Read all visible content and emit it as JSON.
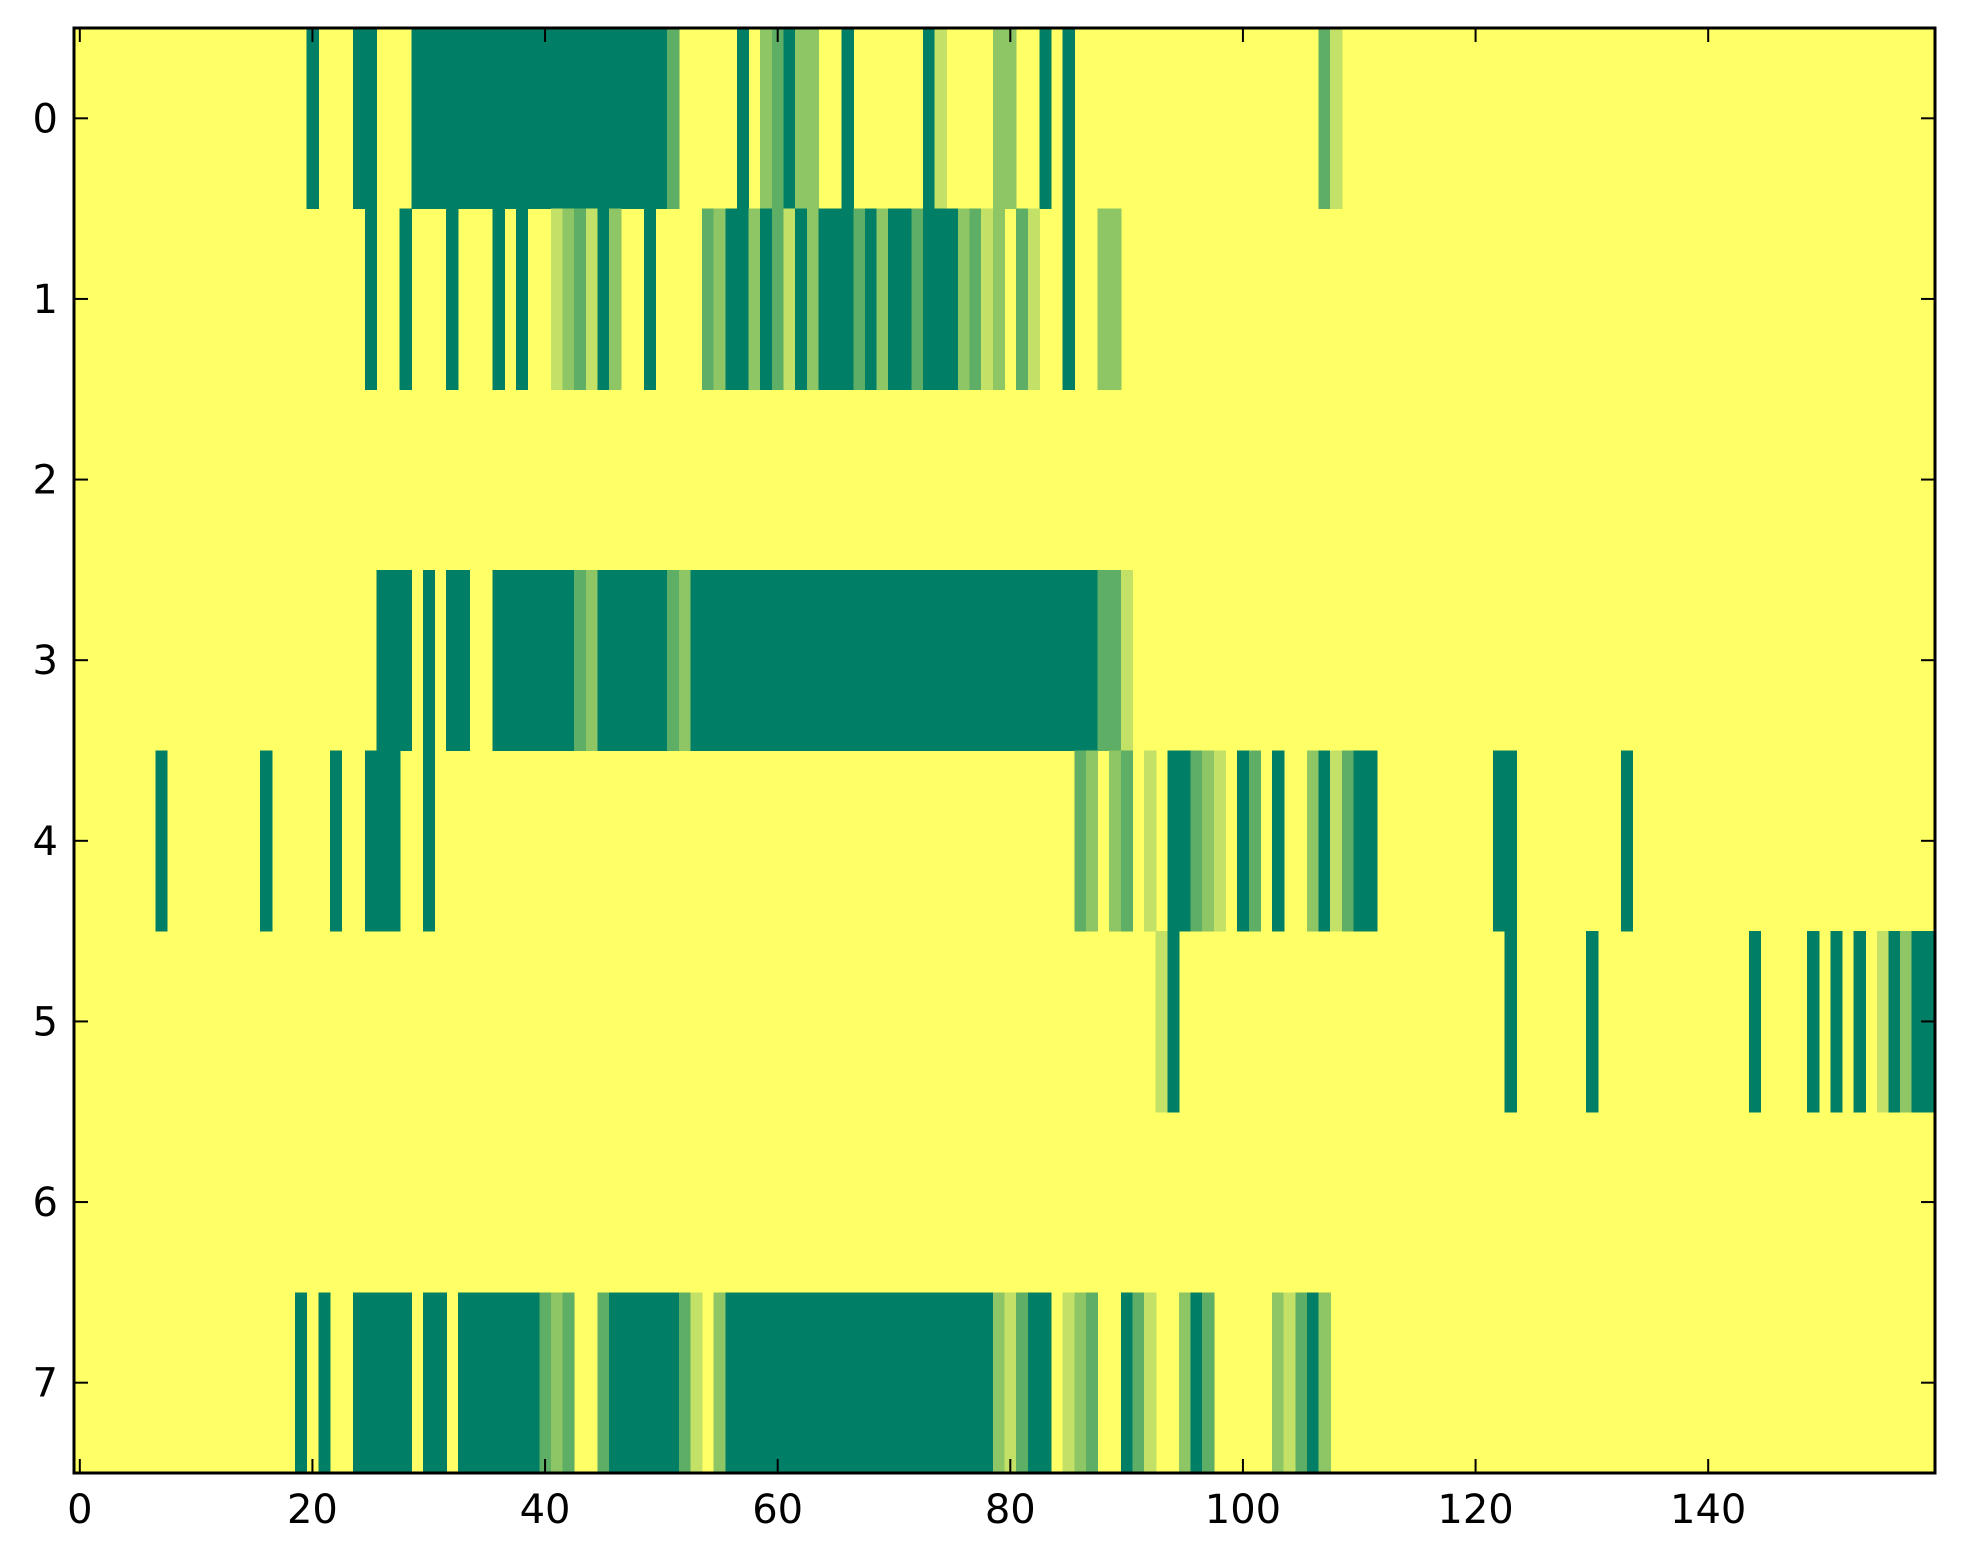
{
  "chart_data": {
    "type": "heatmap",
    "title": "",
    "xlabel": "",
    "ylabel": "",
    "xlim": [
      -0.5,
      159.5
    ],
    "ylim": [
      7.5,
      -0.5
    ],
    "x_ticks": [
      0,
      20,
      40,
      60,
      80,
      100,
      120,
      140
    ],
    "x_tick_labels": [
      "0",
      "20",
      "40",
      "60",
      "80",
      "100",
      "120",
      "140"
    ],
    "y_ticks": [
      0,
      1,
      2,
      3,
      4,
      5,
      6,
      7
    ],
    "y_tick_labels": [
      "0",
      "1",
      "2",
      "3",
      "4",
      "5",
      "6",
      "7"
    ],
    "colormap": "summer_r",
    "background_value": 0,
    "colors": {
      "0": "#ffff66",
      "1": "#c3e166",
      "2": "#8ec666",
      "3": "#5eae66",
      "4": "#007f66"
    },
    "rows": [
      {
        "row": 0,
        "segments": [
          [
            19.5,
            20.5,
            4
          ],
          [
            23.5,
            25.5,
            4
          ],
          [
            28.5,
            50.5,
            4
          ],
          [
            50.5,
            51.5,
            3
          ],
          [
            56.5,
            57.5,
            4
          ],
          [
            58.5,
            59.5,
            2
          ],
          [
            59.5,
            60.5,
            3
          ],
          [
            60.5,
            61.5,
            4
          ],
          [
            61.5,
            63.5,
            2
          ],
          [
            65.5,
            66.5,
            4
          ],
          [
            72.5,
            73.5,
            4
          ],
          [
            73.5,
            74.5,
            1
          ],
          [
            78.5,
            80.5,
            2
          ],
          [
            82.5,
            83.5,
            4
          ],
          [
            84.5,
            85.5,
            4
          ],
          [
            106.5,
            107.5,
            3
          ],
          [
            107.5,
            108.5,
            1
          ]
        ]
      },
      {
        "row": 1,
        "segments": [
          [
            24.5,
            25.5,
            4
          ],
          [
            27.5,
            28.5,
            4
          ],
          [
            31.5,
            32.5,
            4
          ],
          [
            35.5,
            36.5,
            4
          ],
          [
            37.5,
            38.5,
            4
          ],
          [
            40.5,
            41.5,
            1
          ],
          [
            41.5,
            42.5,
            2
          ],
          [
            42.5,
            43.5,
            3
          ],
          [
            43.5,
            44.5,
            1
          ],
          [
            44.5,
            45.5,
            4
          ],
          [
            45.5,
            46.5,
            2
          ],
          [
            48.5,
            49.5,
            4
          ],
          [
            53.5,
            54.5,
            3
          ],
          [
            54.5,
            55.5,
            2
          ],
          [
            55.5,
            57.5,
            4
          ],
          [
            57.5,
            58.5,
            2
          ],
          [
            58.5,
            59.5,
            4
          ],
          [
            59.5,
            60.5,
            3
          ],
          [
            60.5,
            61.5,
            1
          ],
          [
            61.5,
            62.5,
            4
          ],
          [
            62.5,
            63.5,
            2
          ],
          [
            63.5,
            66.5,
            4
          ],
          [
            66.5,
            67.5,
            3
          ],
          [
            67.5,
            68.5,
            4
          ],
          [
            68.5,
            69.5,
            2
          ],
          [
            69.5,
            71.5,
            4
          ],
          [
            71.5,
            72.5,
            3
          ],
          [
            72.5,
            75.5,
            4
          ],
          [
            75.5,
            76.5,
            2
          ],
          [
            76.5,
            77.5,
            3
          ],
          [
            77.5,
            78.5,
            1
          ],
          [
            78.5,
            79.5,
            2
          ],
          [
            80.5,
            81.5,
            3
          ],
          [
            81.5,
            82.5,
            1
          ],
          [
            84.5,
            85.5,
            4
          ],
          [
            87.5,
            89.5,
            2
          ]
        ]
      },
      {
        "row": 2,
        "segments": []
      },
      {
        "row": 3,
        "segments": [
          [
            25.5,
            28.5,
            4
          ],
          [
            29.5,
            30.5,
            4
          ],
          [
            31.5,
            33.5,
            4
          ],
          [
            35.5,
            42.5,
            4
          ],
          [
            42.5,
            43.5,
            3
          ],
          [
            43.5,
            44.5,
            2
          ],
          [
            44.5,
            50.5,
            4
          ],
          [
            50.5,
            51.5,
            3
          ],
          [
            51.5,
            52.5,
            2
          ],
          [
            52.5,
            87.5,
            4
          ],
          [
            87.5,
            89.5,
            3
          ],
          [
            89.5,
            90.5,
            1
          ]
        ]
      },
      {
        "row": 4,
        "segments": [
          [
            6.5,
            7.5,
            4
          ],
          [
            15.5,
            16.5,
            4
          ],
          [
            21.5,
            22.5,
            4
          ],
          [
            24.5,
            27.5,
            4
          ],
          [
            29.5,
            30.5,
            4
          ],
          [
            85.5,
            86.5,
            3
          ],
          [
            86.5,
            87.5,
            2
          ],
          [
            88.5,
            89.5,
            2
          ],
          [
            89.5,
            90.5,
            3
          ],
          [
            91.5,
            92.5,
            1
          ],
          [
            93.5,
            95.5,
            4
          ],
          [
            95.5,
            96.5,
            3
          ],
          [
            96.5,
            97.5,
            2
          ],
          [
            97.5,
            98.5,
            1
          ],
          [
            99.5,
            100.5,
            4
          ],
          [
            100.5,
            101.5,
            3
          ],
          [
            102.5,
            103.5,
            4
          ],
          [
            105.5,
            106.5,
            2
          ],
          [
            106.5,
            107.5,
            4
          ],
          [
            107.5,
            108.5,
            1
          ],
          [
            108.5,
            109.5,
            3
          ],
          [
            109.5,
            111.5,
            4
          ],
          [
            121.5,
            123.5,
            4
          ],
          [
            132.5,
            133.5,
            4
          ]
        ]
      },
      {
        "row": 5,
        "segments": [
          [
            92.5,
            93.5,
            1
          ],
          [
            93.5,
            94.5,
            4
          ],
          [
            122.5,
            123.5,
            4
          ],
          [
            129.5,
            130.5,
            4
          ],
          [
            143.5,
            144.5,
            4
          ],
          [
            148.5,
            149.5,
            4
          ],
          [
            150.5,
            151.5,
            4
          ],
          [
            152.5,
            153.5,
            4
          ],
          [
            154.5,
            155.5,
            1
          ],
          [
            155.5,
            156.5,
            4
          ],
          [
            156.5,
            157.5,
            2
          ],
          [
            157.5,
            159.5,
            4
          ]
        ]
      },
      {
        "row": 6,
        "segments": []
      },
      {
        "row": 7,
        "segments": [
          [
            18.5,
            19.5,
            4
          ],
          [
            20.5,
            21.5,
            4
          ],
          [
            23.5,
            28.5,
            4
          ],
          [
            29.5,
            31.5,
            4
          ],
          [
            32.5,
            39.5,
            4
          ],
          [
            39.5,
            40.5,
            3
          ],
          [
            40.5,
            41.5,
            2
          ],
          [
            41.5,
            42.5,
            3
          ],
          [
            44.5,
            45.5,
            3
          ],
          [
            45.5,
            51.5,
            4
          ],
          [
            51.5,
            52.5,
            3
          ],
          [
            52.5,
            53.5,
            1
          ],
          [
            54.5,
            55.5,
            2
          ],
          [
            55.5,
            78.5,
            4
          ],
          [
            78.5,
            79.5,
            2
          ],
          [
            79.5,
            80.5,
            1
          ],
          [
            80.5,
            81.5,
            3
          ],
          [
            81.5,
            83.5,
            4
          ],
          [
            84.5,
            85.5,
            1
          ],
          [
            85.5,
            86.5,
            2
          ],
          [
            86.5,
            87.5,
            3
          ],
          [
            89.5,
            90.5,
            4
          ],
          [
            90.5,
            91.5,
            3
          ],
          [
            91.5,
            92.5,
            1
          ],
          [
            94.5,
            95.5,
            2
          ],
          [
            95.5,
            96.5,
            4
          ],
          [
            96.5,
            97.5,
            3
          ],
          [
            102.5,
            103.5,
            2
          ],
          [
            103.5,
            104.5,
            1
          ],
          [
            104.5,
            105.5,
            3
          ],
          [
            105.5,
            106.5,
            4
          ],
          [
            106.5,
            107.5,
            2
          ]
        ]
      }
    ]
  }
}
